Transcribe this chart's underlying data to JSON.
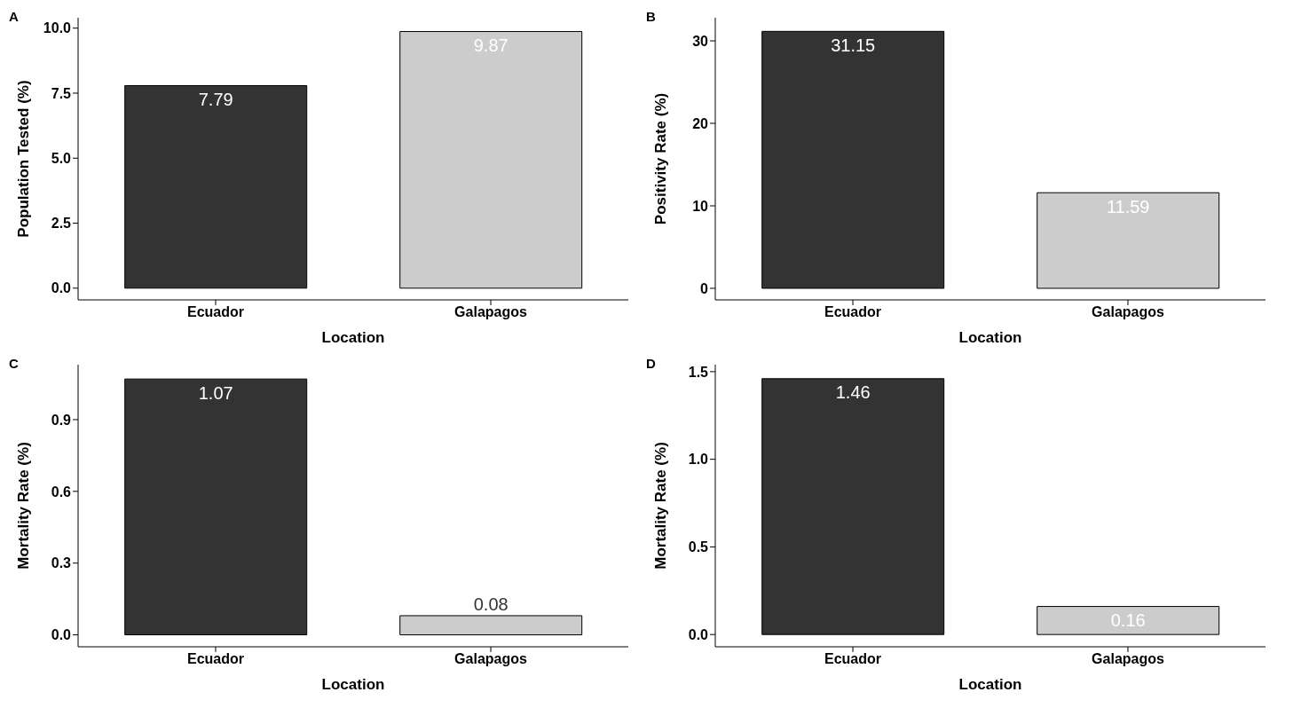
{
  "chart_data": [
    {
      "type": "bar",
      "title": "A",
      "xlabel": "Location",
      "ylabel": "Population Tested (%)",
      "categories": [
        "Ecuador",
        "Galapagos"
      ],
      "values": [
        7.79,
        9.87
      ],
      "colors": [
        "#333333",
        "#cccccc"
      ],
      "ylim": [
        -0.45,
        10.4
      ],
      "yticks": [
        {
          "value": 0,
          "label": "0.0"
        },
        {
          "value": 2.5,
          "label": "2.5"
        },
        {
          "value": 5,
          "label": "5.0"
        },
        {
          "value": 7.5,
          "label": "7.5"
        },
        {
          "value": 10,
          "label": "10.0"
        }
      ],
      "data_labels": true
    },
    {
      "type": "bar",
      "title": "B",
      "xlabel": "Location",
      "ylabel": "Positivity Rate (%)",
      "categories": [
        "Ecuador",
        "Galapagos"
      ],
      "values": [
        31.15,
        11.59
      ],
      "colors": [
        "#333333",
        "#cccccc"
      ],
      "ylim": [
        -1.4,
        32.8
      ],
      "yticks": [
        0,
        10,
        20,
        30
      ],
      "data_labels": true
    },
    {
      "type": "bar",
      "title": "C",
      "xlabel": "Location",
      "ylabel": "Mortality Rate (%)",
      "categories": [
        "Ecuador",
        "Galapagos"
      ],
      "values": [
        1.07,
        0.08
      ],
      "colors": [
        "#333333",
        "#cccccc"
      ],
      "ylim": [
        -0.05,
        1.13
      ],
      "yticks": [
        {
          "value": 0,
          "label": "0.0"
        },
        {
          "value": 0.3,
          "label": "0.3"
        },
        {
          "value": 0.6,
          "label": "0.6"
        },
        {
          "value": 0.9,
          "label": "0.9"
        }
      ],
      "data_labels": true
    },
    {
      "type": "bar",
      "title": "D",
      "xlabel": "Location",
      "ylabel": "Mortality Rate (%)",
      "categories": [
        "Ecuador",
        "Galapagos"
      ],
      "values": [
        1.46,
        0.16
      ],
      "colors": [
        "#333333",
        "#cccccc"
      ],
      "ylim": [
        -0.07,
        1.54
      ],
      "yticks": [
        {
          "value": 0,
          "label": "0.0"
        },
        {
          "value": 0.5,
          "label": "0.5"
        },
        {
          "value": 1,
          "label": "1.0"
        },
        {
          "value": 1.5,
          "label": "1.5"
        }
      ],
      "data_labels": true
    }
  ]
}
